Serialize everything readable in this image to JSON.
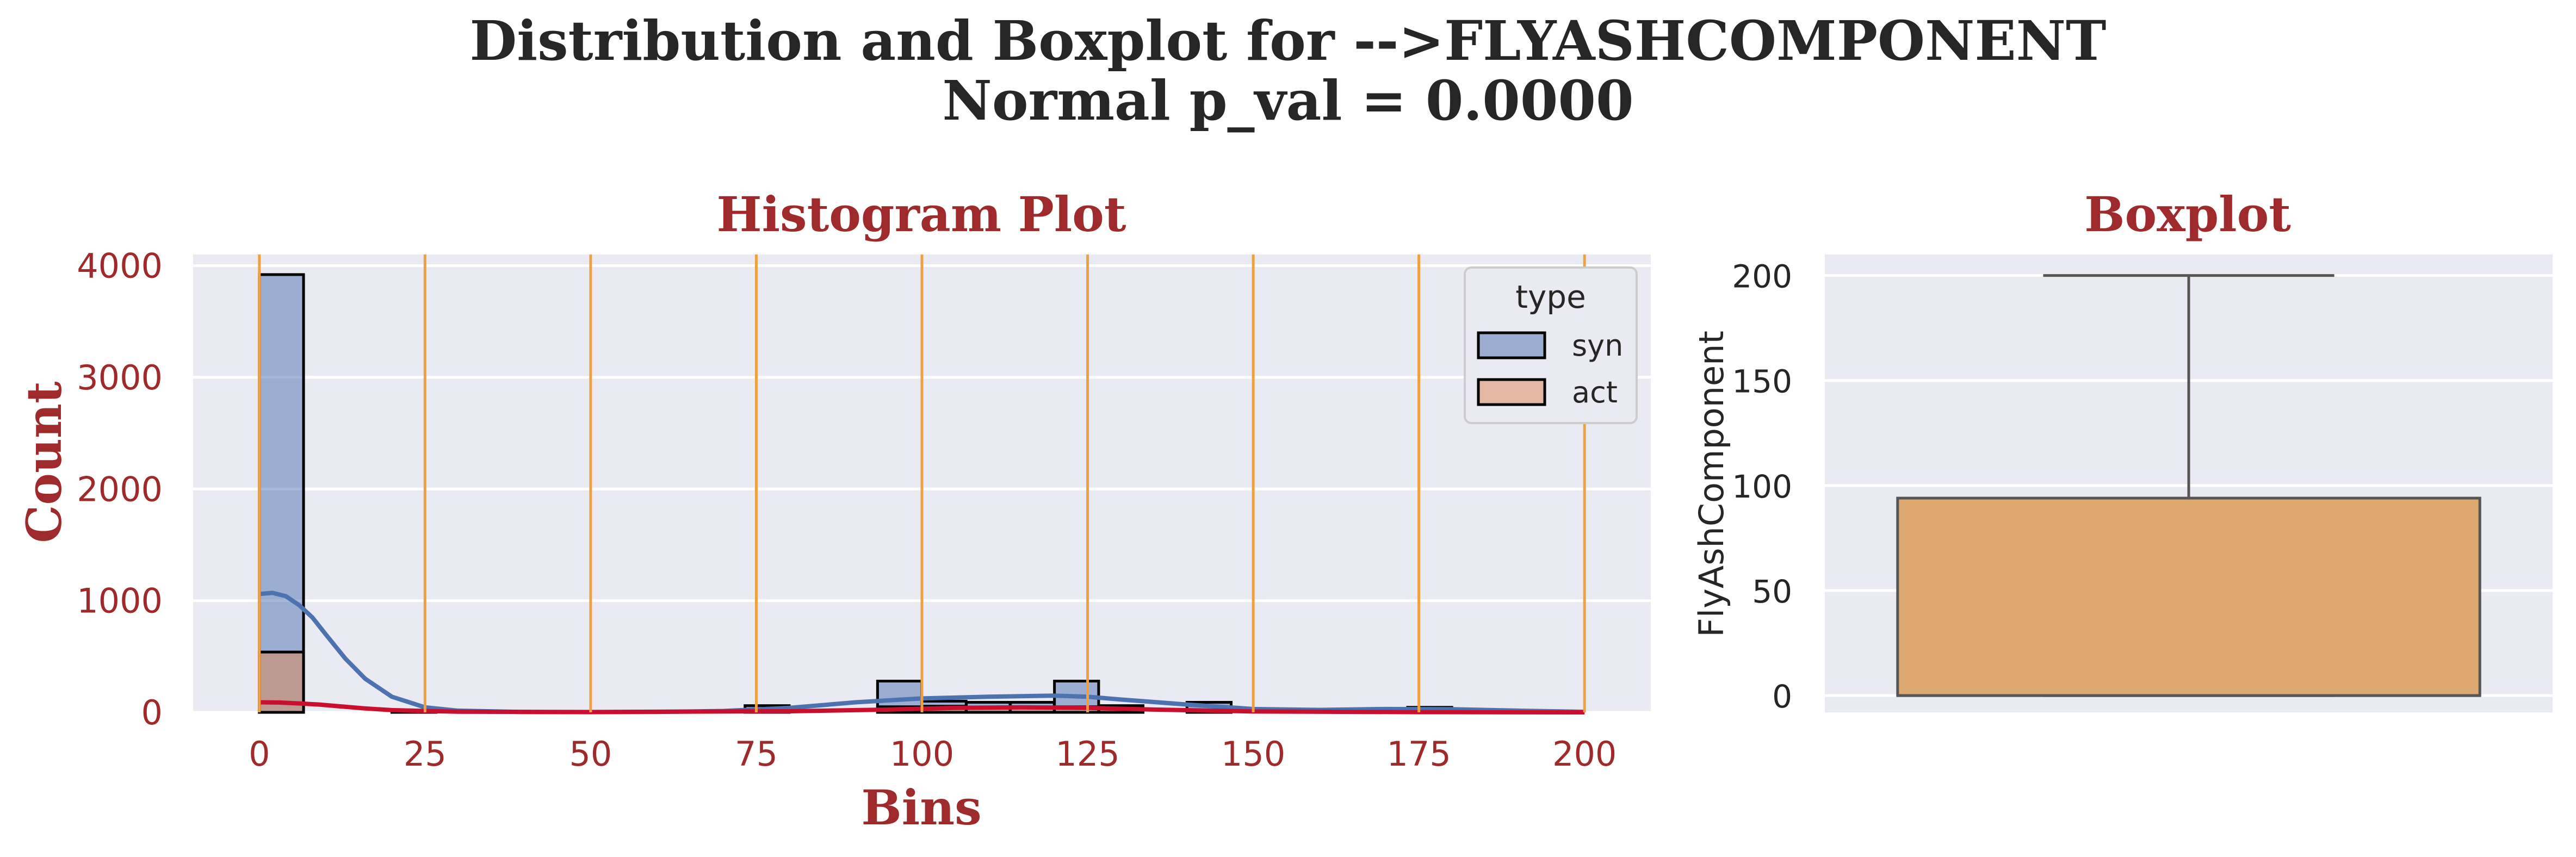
{
  "figure": {
    "title_line1": "Distribution and Boxplot for -->FLYASHCOMPONENT",
    "title_line2": "Normal p_val = 0.0000"
  },
  "colors": {
    "panel_bg": "#eaeaf2",
    "grid": "#ffffff",
    "accent_red": "#9e2a2b",
    "syn": "#4c72b0",
    "act": "#dd8452",
    "kde_act": "#c8102e",
    "vline": "#f0a040",
    "box_fill": "#dea971",
    "box_edge": "#555555",
    "text": "#262626"
  },
  "chart_data": [
    {
      "type": "histogram",
      "title": "Histogram Plot",
      "xlabel": "Bins",
      "ylabel": "Count",
      "xlim": [
        -10,
        210
      ],
      "ylim": [
        0,
        4100
      ],
      "xticks": [
        0,
        25,
        50,
        75,
        100,
        125,
        150,
        175,
        200
      ],
      "yticks": [
        0,
        1000,
        2000,
        3000,
        4000
      ],
      "vlines": [
        0,
        25,
        50,
        75,
        100,
        125,
        150,
        175,
        200
      ],
      "grid": true,
      "legend": {
        "title": "type",
        "position": "top-right",
        "entries": [
          "syn",
          "act"
        ]
      },
      "bin_width": 6.67,
      "series": [
        {
          "name": "syn",
          "bin_starts": [
            0,
            20,
            73.3,
            93.3,
            100,
            106.7,
            113.3,
            120,
            126.7,
            140,
            173.3
          ],
          "counts": [
            3920,
            10,
            60,
            280,
            100,
            90,
            90,
            280,
            60,
            90,
            45
          ]
        },
        {
          "name": "act",
          "bin_starts": [
            0,
            20,
            93.3,
            100,
            106.7,
            113.3,
            120,
            126.7
          ],
          "counts": [
            540,
            20,
            50,
            55,
            45,
            40,
            50,
            40
          ]
        }
      ],
      "kde": [
        {
          "name": "syn",
          "x": [
            0,
            2,
            4,
            6,
            8,
            10,
            13,
            16,
            20,
            25,
            30,
            40,
            50,
            60,
            70,
            80,
            90,
            100,
            110,
            115,
            120,
            125,
            130,
            140,
            150,
            160,
            170,
            180,
            190,
            200
          ],
          "y": [
            1060,
            1070,
            1040,
            960,
            850,
            700,
            480,
            300,
            140,
            45,
            15,
            3,
            2,
            4,
            12,
            40,
            90,
            125,
            140,
            145,
            150,
            140,
            115,
            70,
            30,
            22,
            30,
            28,
            15,
            5
          ]
        },
        {
          "name": "act",
          "x": [
            0,
            3,
            6,
            9,
            12,
            16,
            20,
            25,
            30,
            50,
            80,
            95,
            105,
            115,
            125,
            135,
            150,
            175,
            200
          ],
          "y": [
            90,
            88,
            80,
            70,
            55,
            35,
            20,
            12,
            6,
            3,
            10,
            25,
            40,
            45,
            40,
            25,
            8,
            2,
            0
          ]
        }
      ]
    },
    {
      "type": "boxplot",
      "title": "Boxplot",
      "ylabel": "FlyAshComponent",
      "ylim": [
        -8,
        210
      ],
      "yticks": [
        0,
        50,
        100,
        150,
        200
      ],
      "grid": true,
      "box": {
        "min": 0,
        "q1": 0,
        "median": 0,
        "q3": 94,
        "max": 200
      }
    }
  ]
}
